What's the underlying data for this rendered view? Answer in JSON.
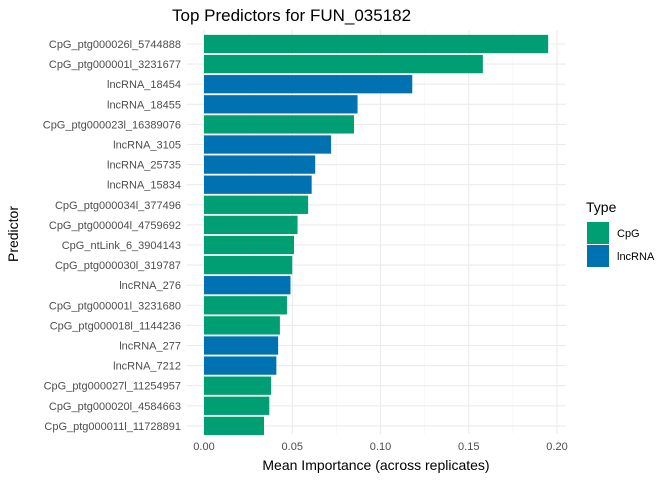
{
  "chart_data": {
    "type": "bar",
    "orientation": "horizontal",
    "title": "Top Predictors for FUN_035182",
    "xlabel": "Mean Importance (across replicates)",
    "ylabel": "Predictor",
    "xlim": [
      0,
      0.2
    ],
    "xticks": [
      "0.00",
      "0.05",
      "0.10",
      "0.15",
      "0.20"
    ],
    "grid": true,
    "legend": {
      "title": "Type",
      "placement": "right",
      "entries": [
        {
          "name": "CpG",
          "color": "#009E73"
        },
        {
          "name": "lncRNA",
          "color": "#0072B2"
        }
      ]
    },
    "categories": [
      "CpG_ptg000026l_5744888",
      "CpG_ptg000001l_3231677",
      "lncRNA_18454",
      "lncRNA_18455",
      "CpG_ptg000023l_16389076",
      "lncRNA_3105",
      "lncRNA_25735",
      "lncRNA_15834",
      "CpG_ptg000034l_377496",
      "CpG_ptg000004l_4759692",
      "CpG_ntLink_6_3904143",
      "CpG_ptg000030l_319787",
      "lncRNA_276",
      "CpG_ptg000001l_3231680",
      "CpG_ptg000018l_1144236",
      "lncRNA_277",
      "lncRNA_7212",
      "CpG_ptg000027l_11254957",
      "CpG_ptg000020l_4584663",
      "CpG_ptg000011l_11728891"
    ],
    "values": [
      0.195,
      0.158,
      0.118,
      0.087,
      0.085,
      0.072,
      0.063,
      0.061,
      0.059,
      0.053,
      0.051,
      0.05,
      0.049,
      0.047,
      0.043,
      0.042,
      0.041,
      0.038,
      0.037,
      0.034
    ],
    "types": [
      "CpG",
      "CpG",
      "lncRNA",
      "lncRNA",
      "CpG",
      "lncRNA",
      "lncRNA",
      "lncRNA",
      "CpG",
      "CpG",
      "CpG",
      "CpG",
      "lncRNA",
      "CpG",
      "CpG",
      "lncRNA",
      "lncRNA",
      "CpG",
      "CpG",
      "CpG"
    ]
  }
}
